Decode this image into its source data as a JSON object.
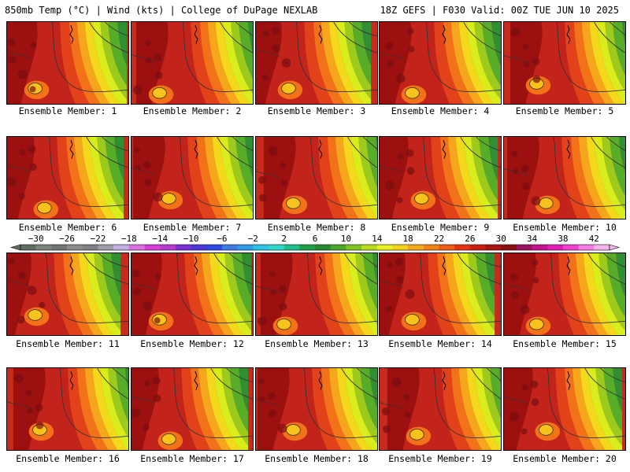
{
  "header": {
    "title_left": "850mb Temp (°C) | Wind (kts) | College of DuPage NEXLAB",
    "title_right": "18Z GEFS | F030 Valid: 00Z TUE JUN 10 2025"
  },
  "members": [
    {
      "label": "Ensemble Member: 1"
    },
    {
      "label": "Ensemble Member: 2"
    },
    {
      "label": "Ensemble Member: 3"
    },
    {
      "label": "Ensemble Member: 4"
    },
    {
      "label": "Ensemble Member: 5"
    },
    {
      "label": "Ensemble Member: 6"
    },
    {
      "label": "Ensemble Member: 7"
    },
    {
      "label": "Ensemble Member: 8"
    },
    {
      "label": "Ensemble Member: 9"
    },
    {
      "label": "Ensemble Member: 10"
    },
    {
      "label": "Ensemble Member: 11"
    },
    {
      "label": "Ensemble Member: 12"
    },
    {
      "label": "Ensemble Member: 13"
    },
    {
      "label": "Ensemble Member: 14"
    },
    {
      "label": "Ensemble Member: 15"
    },
    {
      "label": "Ensemble Member: 16"
    },
    {
      "label": "Ensemble Member: 17"
    },
    {
      "label": "Ensemble Member: 18"
    },
    {
      "label": "Ensemble Member: 19"
    },
    {
      "label": "Ensemble Member: 20"
    }
  ],
  "colorbar": {
    "ticks": [
      "-30",
      "-26",
      "-22",
      "-18",
      "-14",
      "-10",
      "-6",
      "-2",
      "2",
      "6",
      "10",
      "14",
      "18",
      "22",
      "26",
      "30",
      "34",
      "38",
      "42"
    ],
    "colors": [
      "#5f6e61",
      "#7c857d",
      "#6f7570",
      "#8c8c8c",
      "#7f7f86",
      "#9c9ca8",
      "#c4b0e0",
      "#d96fe0",
      "#d63fd8",
      "#b63ad0",
      "#7a2fd0",
      "#4b36d6",
      "#2f48e0",
      "#3d7ce6",
      "#2f9be8",
      "#29c3e8",
      "#2bd8c8",
      "#1fbf8a",
      "#1d9f4a",
      "#238a30",
      "#4aa629",
      "#80c21f",
      "#b7dc1a",
      "#e6f01a",
      "#f7d21a",
      "#f4a919",
      "#f28216",
      "#ef5a14",
      "#e53312",
      "#cc1f14",
      "#a81414",
      "#8a0e12",
      "#9e1263",
      "#c4138f",
      "#e51db7",
      "#f23fd1",
      "#f77ae2",
      "#f3b3ec"
    ]
  }
}
